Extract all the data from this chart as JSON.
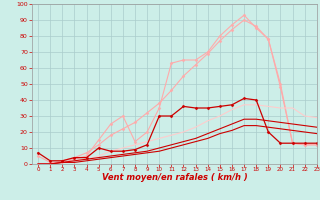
{
  "background_color": "#cceee8",
  "grid_color": "#aacccc",
  "xlabel": "Vent moyen/en rafales ( km/h )",
  "xlabel_color": "#cc0000",
  "xlabel_fontsize": 6,
  "ylabel_ticks": [
    0,
    10,
    20,
    30,
    40,
    50,
    60,
    70,
    80,
    90,
    100
  ],
  "xticks": [
    0,
    1,
    2,
    3,
    4,
    5,
    6,
    7,
    8,
    9,
    10,
    11,
    12,
    13,
    14,
    15,
    16,
    17,
    18,
    19,
    20,
    21,
    22,
    23
  ],
  "xlim": [
    -0.5,
    23
  ],
  "ylim": [
    0,
    100
  ],
  "series": [
    {
      "x": [
        0,
        1,
        2,
        3,
        4,
        5,
        6,
        7,
        8,
        9,
        10,
        11,
        12,
        13,
        14,
        15,
        16,
        17,
        18,
        19,
        20,
        21,
        22,
        23
      ],
      "y": [
        5,
        1,
        1,
        3,
        5,
        15,
        25,
        30,
        14,
        20,
        35,
        63,
        65,
        65,
        70,
        80,
        87,
        93,
        85,
        78,
        48,
        13,
        12,
        12
      ],
      "color": "#ffaaaa",
      "linewidth": 0.8,
      "marker": "D",
      "markersize": 1.5,
      "alpha": 1.0
    },
    {
      "x": [
        0,
        1,
        2,
        3,
        4,
        5,
        6,
        7,
        8,
        9,
        10,
        11,
        12,
        13,
        14,
        15,
        16,
        17,
        18,
        19,
        20,
        21,
        22,
        23
      ],
      "y": [
        0,
        0,
        2,
        4,
        7,
        12,
        18,
        22,
        26,
        32,
        38,
        46,
        55,
        62,
        69,
        77,
        84,
        90,
        86,
        78,
        50,
        13,
        12,
        12
      ],
      "color": "#ffaaaa",
      "linewidth": 0.8,
      "marker": "D",
      "markersize": 1.5,
      "alpha": 1.0
    },
    {
      "x": [
        0,
        1,
        2,
        3,
        4,
        5,
        6,
        7,
        8,
        9,
        10,
        11,
        12,
        13,
        14,
        15,
        16,
        17,
        18,
        19,
        20,
        21,
        22,
        23
      ],
      "y": [
        0,
        0,
        1,
        2,
        3,
        5,
        8,
        10,
        12,
        14,
        16,
        18,
        20,
        23,
        27,
        30,
        34,
        37,
        37,
        36,
        35,
        35,
        30,
        29
      ],
      "color": "#ffcccc",
      "linewidth": 0.8,
      "marker": null,
      "markersize": 0,
      "alpha": 1.0
    },
    {
      "x": [
        0,
        1,
        2,
        3,
        4,
        5,
        6,
        7,
        8,
        9,
        10,
        11,
        12,
        13,
        14,
        15,
        16,
        17,
        18,
        19,
        20,
        21,
        22,
        23
      ],
      "y": [
        7,
        2,
        2,
        4,
        4,
        10,
        8,
        8,
        9,
        12,
        30,
        30,
        36,
        35,
        35,
        36,
        37,
        41,
        40,
        20,
        13,
        13,
        13,
        13
      ],
      "color": "#cc0000",
      "linewidth": 0.9,
      "marker": "D",
      "markersize": 1.5,
      "alpha": 1.0
    },
    {
      "x": [
        0,
        1,
        2,
        3,
        4,
        5,
        6,
        7,
        8,
        9,
        10,
        11,
        12,
        13,
        14,
        15,
        16,
        17,
        18,
        19,
        20,
        21,
        22,
        23
      ],
      "y": [
        0,
        0,
        1,
        2,
        3,
        4,
        5,
        6,
        7,
        8,
        10,
        12,
        14,
        16,
        19,
        22,
        25,
        28,
        28,
        27,
        26,
        25,
        24,
        23
      ],
      "color": "#cc0000",
      "linewidth": 0.8,
      "marker": null,
      "markersize": 0,
      "alpha": 1.0
    },
    {
      "x": [
        0,
        1,
        2,
        3,
        4,
        5,
        6,
        7,
        8,
        9,
        10,
        11,
        12,
        13,
        14,
        15,
        16,
        17,
        18,
        19,
        20,
        21,
        22,
        23
      ],
      "y": [
        0,
        0,
        1,
        1,
        2,
        3,
        4,
        5,
        6,
        7,
        8,
        10,
        12,
        14,
        16,
        19,
        21,
        24,
        24,
        23,
        22,
        21,
        20,
        19
      ],
      "color": "#cc0000",
      "linewidth": 0.8,
      "marker": null,
      "markersize": 0,
      "alpha": 1.0
    }
  ]
}
